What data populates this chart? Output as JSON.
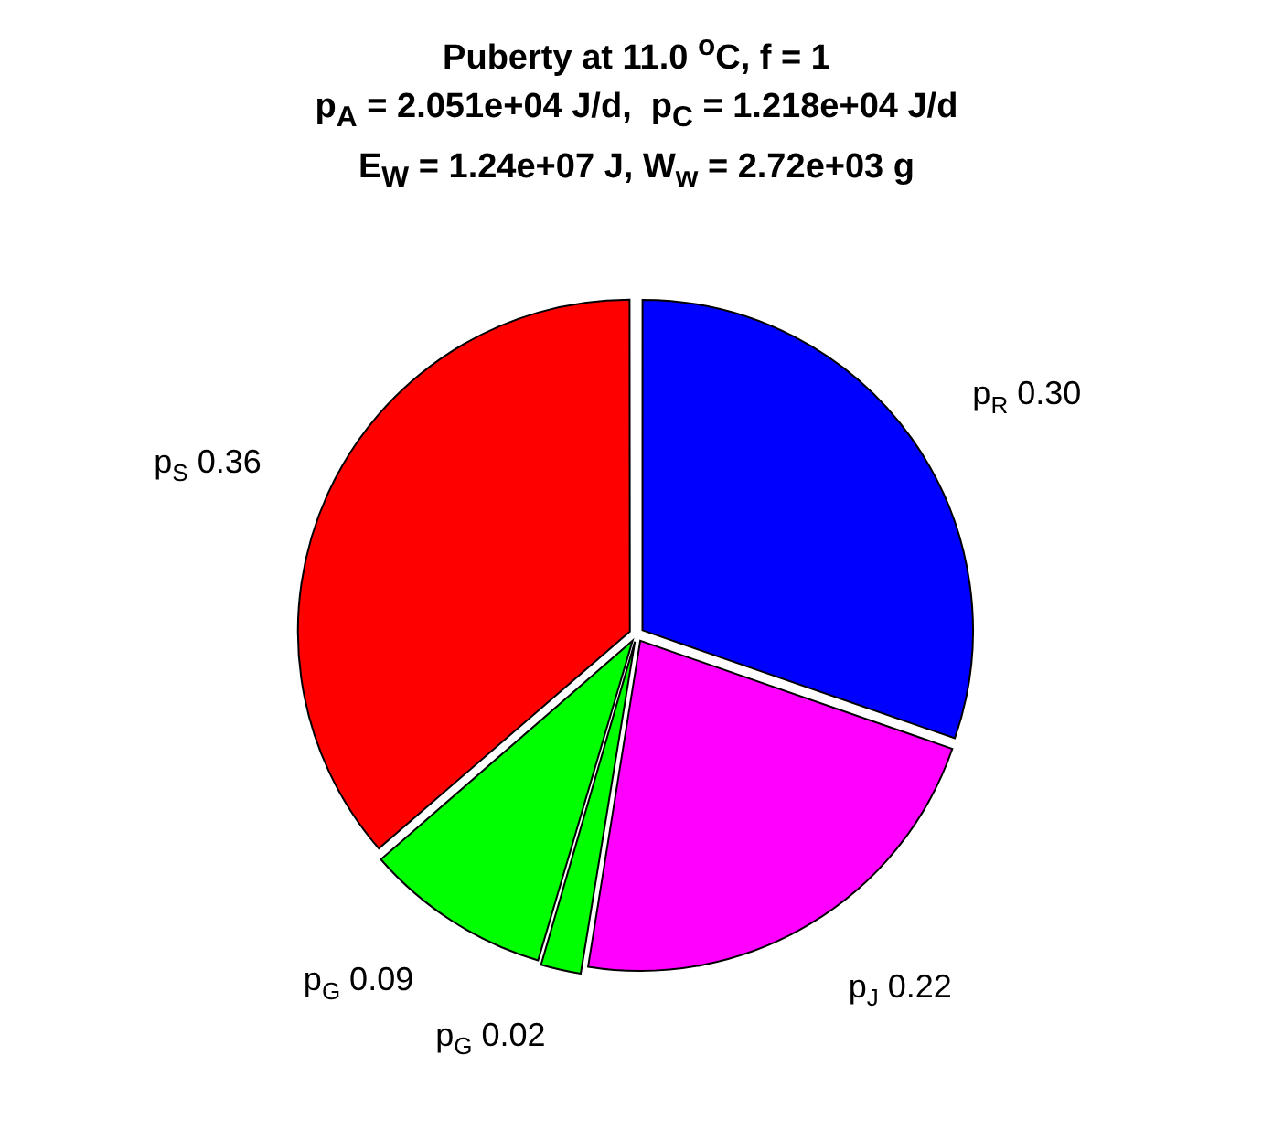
{
  "chart_data": {
    "type": "pie",
    "title": "Puberty at 11.0 $^{o}$C, f = 1",
    "subtitle": "p$_{A}$ = 2.051e+04 J/d,  p$_{C}$ = 1.218e+04 J/d\nE$_{W}$ = 1.24e+07 J, W$_{w}$ = 2.72e+03 g",
    "categories": [
      "p$_{R}$",
      "p$_{J}$",
      "p$_{G}$",
      "p$_{G}$",
      "p$_{S}$"
    ],
    "values": [
      0.3,
      0.22,
      0.02,
      0.09,
      0.36
    ],
    "value_labels": [
      "0.30",
      "0.22",
      "0.02",
      "0.09",
      "0.36"
    ],
    "colors": [
      "#0000ff",
      "#ff00ff",
      "#00ff00",
      "#00ff00",
      "#ff0000"
    ],
    "legend": false
  }
}
